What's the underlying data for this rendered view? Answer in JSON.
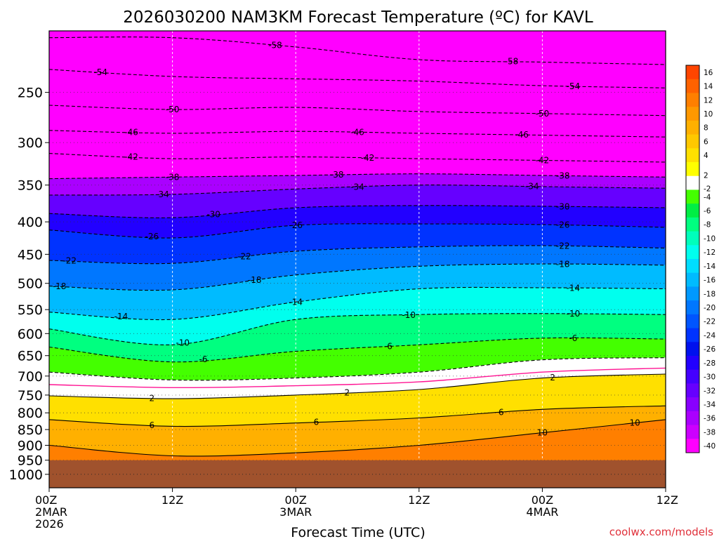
{
  "chart_data": {
    "type": "heatmap",
    "title": "2026030200 NAM3KM Forecast Temperature (ºC) for KAVL",
    "xlabel": "Forecast Time (UTC)",
    "ylabel": "",
    "credit": "coolwx.com/models",
    "x_ticks": [
      {
        "hours": 0,
        "lines": [
          "00Z",
          "2MAR",
          "2026"
        ]
      },
      {
        "hours": 12,
        "lines": [
          "12Z"
        ]
      },
      {
        "hours": 24,
        "lines": [
          "00Z",
          "3MAR"
        ]
      },
      {
        "hours": 36,
        "lines": [
          "12Z"
        ]
      },
      {
        "hours": 48,
        "lines": [
          "00Z",
          "4MAR"
        ]
      },
      {
        "hours": 60,
        "lines": [
          "12Z"
        ]
      }
    ],
    "x_range_hours": [
      0,
      60
    ],
    "y_ticks": [
      250,
      300,
      350,
      400,
      450,
      500,
      550,
      600,
      650,
      700,
      750,
      800,
      850,
      900,
      950,
      1000
    ],
    "y_range_hpa": [
      200,
      1050
    ],
    "y_scale": "log",
    "ground_hpa": 950,
    "colorbar": {
      "labels": [
        16,
        14,
        12,
        10,
        8,
        6,
        4,
        2,
        -2,
        -4,
        -6,
        -8,
        -10,
        -12,
        -14,
        -16,
        -18,
        -20,
        -22,
        -24,
        -26,
        -28,
        -30,
        -32,
        -34,
        -36,
        -38,
        -40
      ],
      "colors": [
        "#ff4500",
        "#ff6200",
        "#ff7f00",
        "#ff9800",
        "#ffb000",
        "#ffc800",
        "#ffe000",
        "#ffff00",
        "#ffffff",
        "#44ff00",
        "#00ee44",
        "#00ff80",
        "#00ffbb",
        "#00ffee",
        "#00ddff",
        "#00bbff",
        "#0099ff",
        "#0077ff",
        "#0055ff",
        "#0033ff",
        "#0011ee",
        "#2200ff",
        "#4400ff",
        "#6600ff",
        "#8800ff",
        "#aa00ff",
        "#cc00ff",
        "#ff00ff"
      ]
    },
    "contours": [
      {
        "value": -58,
        "p": [
          205,
          205,
          212,
          222,
          224,
          226
        ],
        "label": "-58",
        "label_hours": [
          22,
          45
        ]
      },
      {
        "value": -54,
        "p": [
          230,
          236,
          238,
          240,
          244,
          246
        ],
        "label": "-54",
        "label_hours": [
          5,
          51
        ]
      },
      {
        "value": -50,
        "p": [
          262,
          266,
          264,
          268,
          270,
          272
        ],
        "label": "-50",
        "label_hours": [
          12,
          48
        ]
      },
      {
        "value": -46,
        "p": [
          287,
          290,
          288,
          290,
          292,
          294
        ],
        "label": "-46",
        "label_hours": [
          8,
          30,
          46
        ]
      },
      {
        "value": -42,
        "p": [
          312,
          318,
          316,
          318,
          320,
          322
        ],
        "label": "-42",
        "label_hours": [
          8,
          31,
          48
        ]
      },
      {
        "value": -38,
        "p": [
          342,
          340,
          338,
          336,
          338,
          340
        ],
        "label": "-38",
        "label_hours": [
          12,
          28,
          50
        ]
      },
      {
        "value": -34,
        "p": [
          363,
          362,
          355,
          350,
          352,
          354
        ],
        "label": "-34",
        "label_hours": [
          11,
          30,
          47
        ]
      },
      {
        "value": -30,
        "p": [
          388,
          394,
          380,
          377,
          378,
          380
        ],
        "label": "-30",
        "label_hours": [
          16,
          50
        ]
      },
      {
        "value": -26,
        "p": [
          412,
          424,
          405,
          403,
          404,
          408
        ],
        "label": "-26",
        "label_hours": [
          10,
          24,
          50
        ]
      },
      {
        "value": -22,
        "p": [
          460,
          465,
          445,
          438,
          436,
          440
        ],
        "label": "-22",
        "label_hours": [
          2,
          19,
          50
        ]
      },
      {
        "value": -18,
        "p": [
          505,
          512,
          485,
          470,
          466,
          468
        ],
        "label": "-18",
        "label_hours": [
          1,
          20,
          50
        ]
      },
      {
        "value": -14,
        "p": [
          555,
          570,
          535,
          510,
          508,
          510
        ],
        "label": "-14",
        "label_hours": [
          7,
          24,
          51
        ]
      },
      {
        "value": -10,
        "p": [
          590,
          625,
          570,
          560,
          558,
          560
        ],
        "label": "-10",
        "label_hours": [
          13,
          35,
          51
        ]
      },
      {
        "value": -6,
        "p": [
          630,
          665,
          640,
          625,
          610,
          612
        ],
        "label": "-6",
        "label_hours": [
          15,
          33,
          51
        ]
      },
      {
        "value": -2,
        "p": [
          690,
          710,
          705,
          690,
          660,
          655
        ],
        "label": "",
        "label_hours": []
      },
      {
        "value": 0,
        "p": [
          722,
          730,
          725,
          715,
          690,
          680
        ],
        "label": "",
        "label_hours": []
      },
      {
        "value": 2,
        "p": [
          752,
          760,
          750,
          735,
          705,
          695
        ],
        "label": "2",
        "label_hours": [
          10,
          29,
          49
        ]
      },
      {
        "value": 6,
        "p": [
          820,
          840,
          830,
          815,
          790,
          780
        ],
        "label": "6",
        "label_hours": [
          10,
          26,
          44
        ]
      },
      {
        "value": 10,
        "p": [
          900,
          935,
          925,
          900,
          860,
          820
        ],
        "label": "10",
        "label_hours": [
          48,
          57
        ]
      }
    ]
  }
}
